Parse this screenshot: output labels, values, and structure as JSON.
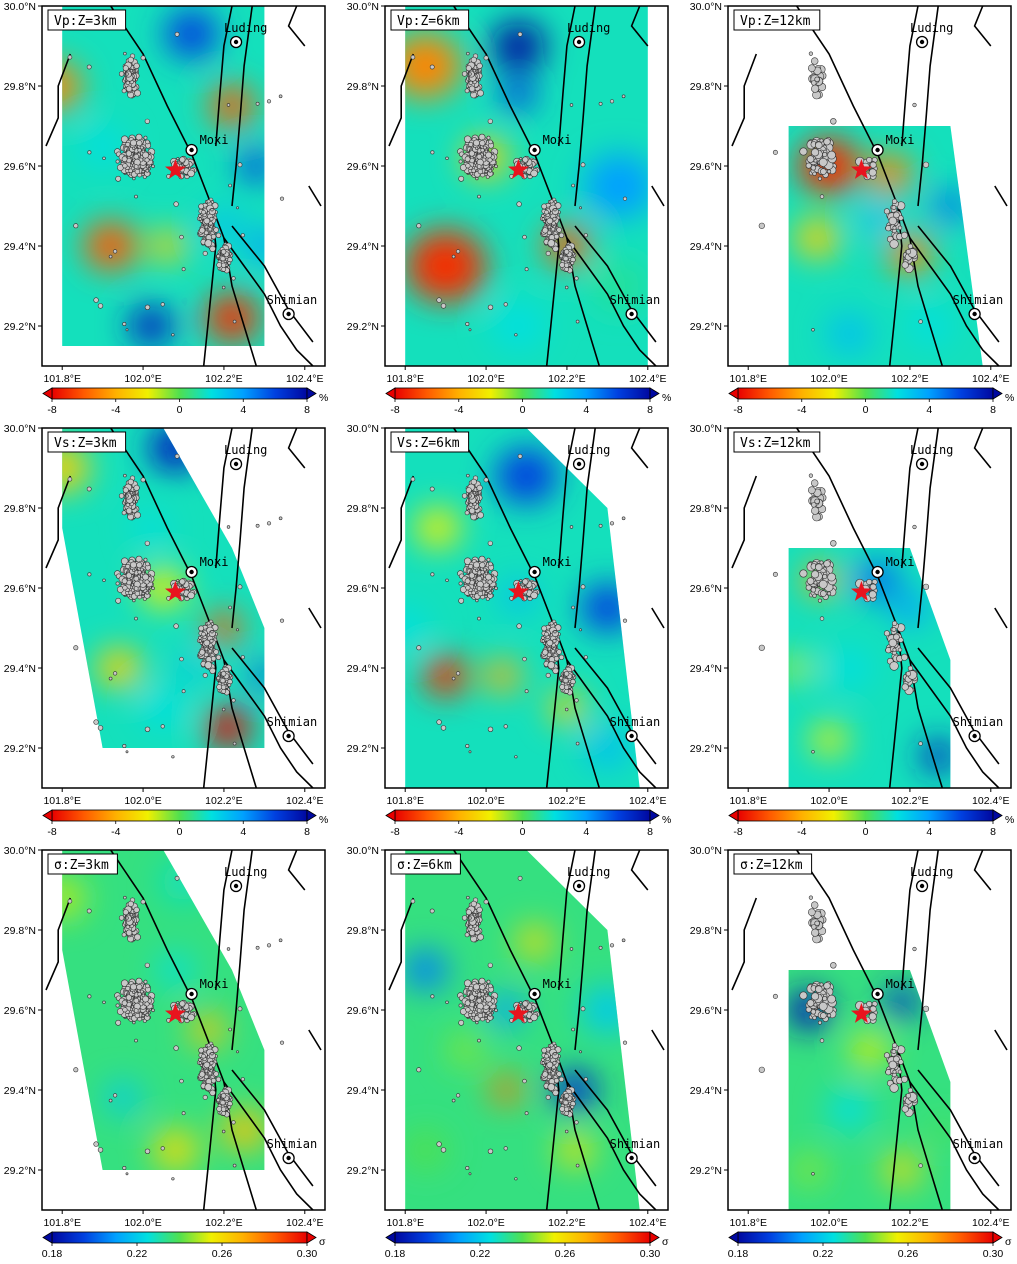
{
  "chart_data": [
    {
      "type": "heatmap",
      "panel": "Vp:Z=3km",
      "title": "Vp:Z=3km",
      "colorbar": "vel",
      "region": [
        [
          101.8,
          29.15
        ],
        [
          102.3,
          29.15
        ],
        [
          102.3,
          30.0
        ],
        [
          101.8,
          30.0
        ]
      ],
      "blobs": [
        [
          102.22,
          29.22,
          0.06,
          -7
        ],
        [
          102.22,
          29.75,
          0.05,
          -6
        ],
        [
          101.92,
          29.4,
          0.06,
          -6
        ],
        [
          101.78,
          29.8,
          0.06,
          -5
        ],
        [
          102.06,
          29.4,
          0.04,
          -3
        ],
        [
          102.12,
          29.93,
          0.06,
          6
        ],
        [
          102.28,
          29.6,
          0.04,
          6
        ],
        [
          102.02,
          29.2,
          0.05,
          7
        ],
        [
          102.3,
          29.4,
          0.04,
          4
        ],
        [
          101.9,
          29.65,
          0.05,
          2
        ],
        [
          102.2,
          29.45,
          0.04,
          3
        ]
      ]
    },
    {
      "type": "heatmap",
      "panel": "Vp:Z=6km",
      "title": "Vp:Z=6km",
      "colorbar": "vel",
      "region": [
        [
          101.8,
          29.1
        ],
        [
          102.4,
          29.1
        ],
        [
          102.4,
          30.0
        ],
        [
          101.8,
          30.0
        ]
      ],
      "blobs": [
        [
          101.9,
          29.35,
          0.09,
          -7
        ],
        [
          101.85,
          29.85,
          0.08,
          -5
        ],
        [
          102.2,
          29.4,
          0.05,
          -6
        ],
        [
          102.0,
          29.62,
          0.05,
          -3
        ],
        [
          102.08,
          29.9,
          0.06,
          8
        ],
        [
          102.08,
          29.78,
          0.04,
          6
        ],
        [
          102.33,
          29.55,
          0.08,
          4
        ],
        [
          102.08,
          29.2,
          0.06,
          2
        ],
        [
          102.33,
          29.3,
          0.06,
          1
        ]
      ]
    },
    {
      "type": "heatmap",
      "panel": "Vp:Z=12km",
      "title": "Vp:Z=12km",
      "colorbar": "vel",
      "region": [
        [
          101.9,
          29.1
        ],
        [
          102.38,
          29.1
        ],
        [
          102.3,
          29.7
        ],
        [
          101.9,
          29.7
        ]
      ],
      "blobs": [
        [
          102.0,
          29.6,
          0.07,
          -7
        ],
        [
          102.15,
          29.58,
          0.05,
          -5
        ],
        [
          101.97,
          29.42,
          0.05,
          -3
        ],
        [
          102.2,
          29.38,
          0.05,
          -5
        ],
        [
          102.12,
          29.47,
          0.04,
          3
        ],
        [
          102.3,
          29.5,
          0.04,
          5
        ],
        [
          102.05,
          29.18,
          0.05,
          3
        ],
        [
          102.25,
          29.2,
          0.05,
          2
        ]
      ]
    },
    {
      "type": "heatmap",
      "panel": "Vs:Z=3km",
      "title": "Vs:Z=3km",
      "colorbar": "vel",
      "region": [
        [
          101.9,
          29.2
        ],
        [
          102.3,
          29.2
        ],
        [
          102.3,
          29.5
        ],
        [
          102.22,
          29.7
        ],
        [
          102.05,
          30.0
        ],
        [
          101.8,
          30.0
        ],
        [
          101.8,
          29.75
        ]
      ],
      "blobs": [
        [
          102.21,
          29.25,
          0.05,
          -8
        ],
        [
          102.2,
          29.5,
          0.04,
          -6
        ],
        [
          101.94,
          29.4,
          0.05,
          -3
        ],
        [
          101.8,
          29.9,
          0.06,
          -3
        ],
        [
          102.05,
          29.6,
          0.05,
          -2
        ],
        [
          102.08,
          29.95,
          0.06,
          7
        ],
        [
          102.3,
          29.38,
          0.03,
          6
        ],
        [
          102.02,
          29.75,
          0.04,
          2
        ],
        [
          102.05,
          29.3,
          0.05,
          2
        ],
        [
          102.12,
          29.4,
          0.03,
          3
        ]
      ]
    },
    {
      "type": "heatmap",
      "panel": "Vs:Z=6km",
      "title": "Vs:Z=6km",
      "colorbar": "vel",
      "region": [
        [
          101.8,
          29.1
        ],
        [
          102.38,
          29.1
        ],
        [
          102.3,
          29.8
        ],
        [
          102.1,
          30.0
        ],
        [
          101.8,
          30.0
        ]
      ],
      "blobs": [
        [
          101.9,
          29.38,
          0.05,
          -7
        ],
        [
          102.04,
          29.38,
          0.04,
          -4
        ],
        [
          101.88,
          29.75,
          0.05,
          -2
        ],
        [
          102.2,
          29.3,
          0.04,
          -3
        ],
        [
          102.1,
          29.88,
          0.07,
          6
        ],
        [
          102.3,
          29.55,
          0.06,
          6
        ],
        [
          102.08,
          29.58,
          0.04,
          3
        ],
        [
          101.8,
          29.5,
          0.05,
          2
        ],
        [
          102.3,
          29.2,
          0.05,
          3
        ]
      ]
    },
    {
      "type": "heatmap",
      "panel": "Vs:Z=12km",
      "title": "Vs:Z=12km",
      "colorbar": "vel",
      "region": [
        [
          101.9,
          29.1
        ],
        [
          102.3,
          29.1
        ],
        [
          102.3,
          29.42
        ],
        [
          102.2,
          29.7
        ],
        [
          101.9,
          29.7
        ]
      ],
      "blobs": [
        [
          101.98,
          29.62,
          0.04,
          -4
        ],
        [
          101.92,
          29.4,
          0.03,
          -2
        ],
        [
          102.0,
          29.22,
          0.04,
          -2
        ],
        [
          102.12,
          29.62,
          0.05,
          5
        ],
        [
          102.27,
          29.18,
          0.04,
          7
        ],
        [
          102.2,
          29.55,
          0.04,
          4
        ],
        [
          102.05,
          29.4,
          0.05,
          2
        ]
      ]
    },
    {
      "type": "heatmap",
      "panel": "σ:Z=3km",
      "title": "σ:Z=3km",
      "colorbar": "sigma",
      "region": [
        [
          101.9,
          29.2
        ],
        [
          102.3,
          29.2
        ],
        [
          102.3,
          29.5
        ],
        [
          102.22,
          29.7
        ],
        [
          102.05,
          30.0
        ],
        [
          101.8,
          30.0
        ],
        [
          101.8,
          29.75
        ]
      ],
      "blobs": [
        [
          102.25,
          29.3,
          0.05,
          0.265
        ],
        [
          102.16,
          29.55,
          0.04,
          0.265
        ],
        [
          101.8,
          29.88,
          0.05,
          0.25
        ],
        [
          102.08,
          29.25,
          0.05,
          0.26
        ],
        [
          101.95,
          29.38,
          0.04,
          0.22
        ],
        [
          102.08,
          29.7,
          0.04,
          0.225
        ],
        [
          102.1,
          29.92,
          0.05,
          0.228
        ]
      ]
    },
    {
      "type": "heatmap",
      "panel": "σ:Z=6km",
      "title": "σ:Z=6km",
      "colorbar": "sigma",
      "region": [
        [
          101.8,
          29.1
        ],
        [
          102.38,
          29.1
        ],
        [
          102.3,
          29.8
        ],
        [
          102.1,
          30.0
        ],
        [
          101.8,
          30.0
        ]
      ],
      "blobs": [
        [
          102.05,
          29.4,
          0.035,
          0.28
        ],
        [
          102.12,
          29.77,
          0.04,
          0.26
        ],
        [
          102.22,
          29.25,
          0.04,
          0.258
        ],
        [
          101.95,
          29.5,
          0.04,
          0.245
        ],
        [
          101.85,
          29.25,
          0.05,
          0.24
        ],
        [
          102.22,
          29.4,
          0.05,
          0.19
        ],
        [
          101.85,
          29.7,
          0.05,
          0.205
        ],
        [
          102.05,
          29.6,
          0.04,
          0.21
        ],
        [
          102.3,
          29.6,
          0.06,
          0.22
        ]
      ]
    },
    {
      "type": "heatmap",
      "panel": "σ:Z=12km",
      "title": "σ:Z=12km",
      "colorbar": "sigma",
      "region": [
        [
          101.9,
          29.1
        ],
        [
          102.3,
          29.1
        ],
        [
          102.3,
          29.42
        ],
        [
          102.2,
          29.7
        ],
        [
          101.9,
          29.7
        ]
      ],
      "blobs": [
        [
          101.95,
          29.6,
          0.05,
          0.185
        ],
        [
          102.18,
          29.62,
          0.04,
          0.19
        ],
        [
          102.05,
          29.35,
          0.05,
          0.225
        ],
        [
          102.1,
          29.5,
          0.04,
          0.255
        ],
        [
          102.18,
          29.2,
          0.04,
          0.26
        ],
        [
          101.95,
          29.2,
          0.04,
          0.245
        ],
        [
          102.28,
          29.3,
          0.03,
          0.24
        ]
      ]
    }
  ],
  "colorbars": {
    "vel": {
      "type": "colorbar",
      "ticks": [
        "-8",
        "-4",
        "0",
        "4",
        "8"
      ],
      "min": -8,
      "max": 8,
      "unit": "%"
    },
    "sigma": {
      "type": "colorbar",
      "ticks": [
        "0.18",
        "0.22",
        "0.26",
        "0.30"
      ],
      "min": 0.18,
      "max": 0.3,
      "unit": "σ"
    }
  },
  "axes": {
    "x_ticks": [
      {
        "v": 101.8,
        "label": "101.8°E"
      },
      {
        "v": 102.0,
        "label": "102.0°E"
      },
      {
        "v": 102.2,
        "label": "102.2°E"
      },
      {
        "v": 102.4,
        "label": "102.4°E"
      }
    ],
    "y_ticks": [
      {
        "v": 29.2,
        "label": "29.2°N"
      },
      {
        "v": 29.4,
        "label": "29.4°N"
      },
      {
        "v": 29.6,
        "label": "29.6°N"
      },
      {
        "v": 29.8,
        "label": "29.8°N"
      },
      {
        "v": 30.0,
        "label": "30.0°N"
      }
    ],
    "lon_range": [
      101.75,
      102.45
    ],
    "lat_range": [
      29.1,
      30.0
    ]
  },
  "towns": [
    {
      "name": "Luding",
      "lon": 102.23,
      "lat": 29.91
    },
    {
      "name": "Moxi",
      "lon": 102.12,
      "lat": 29.64
    },
    {
      "name": "Shimian",
      "lon": 102.36,
      "lat": 29.23
    }
  ],
  "mainshock": {
    "lon": 102.08,
    "lat": 29.59
  },
  "colors": {
    "star": "#e8141e",
    "fault": "#000000",
    "quake_fill": "#c8c8c8",
    "quake_edge": "#333333"
  }
}
